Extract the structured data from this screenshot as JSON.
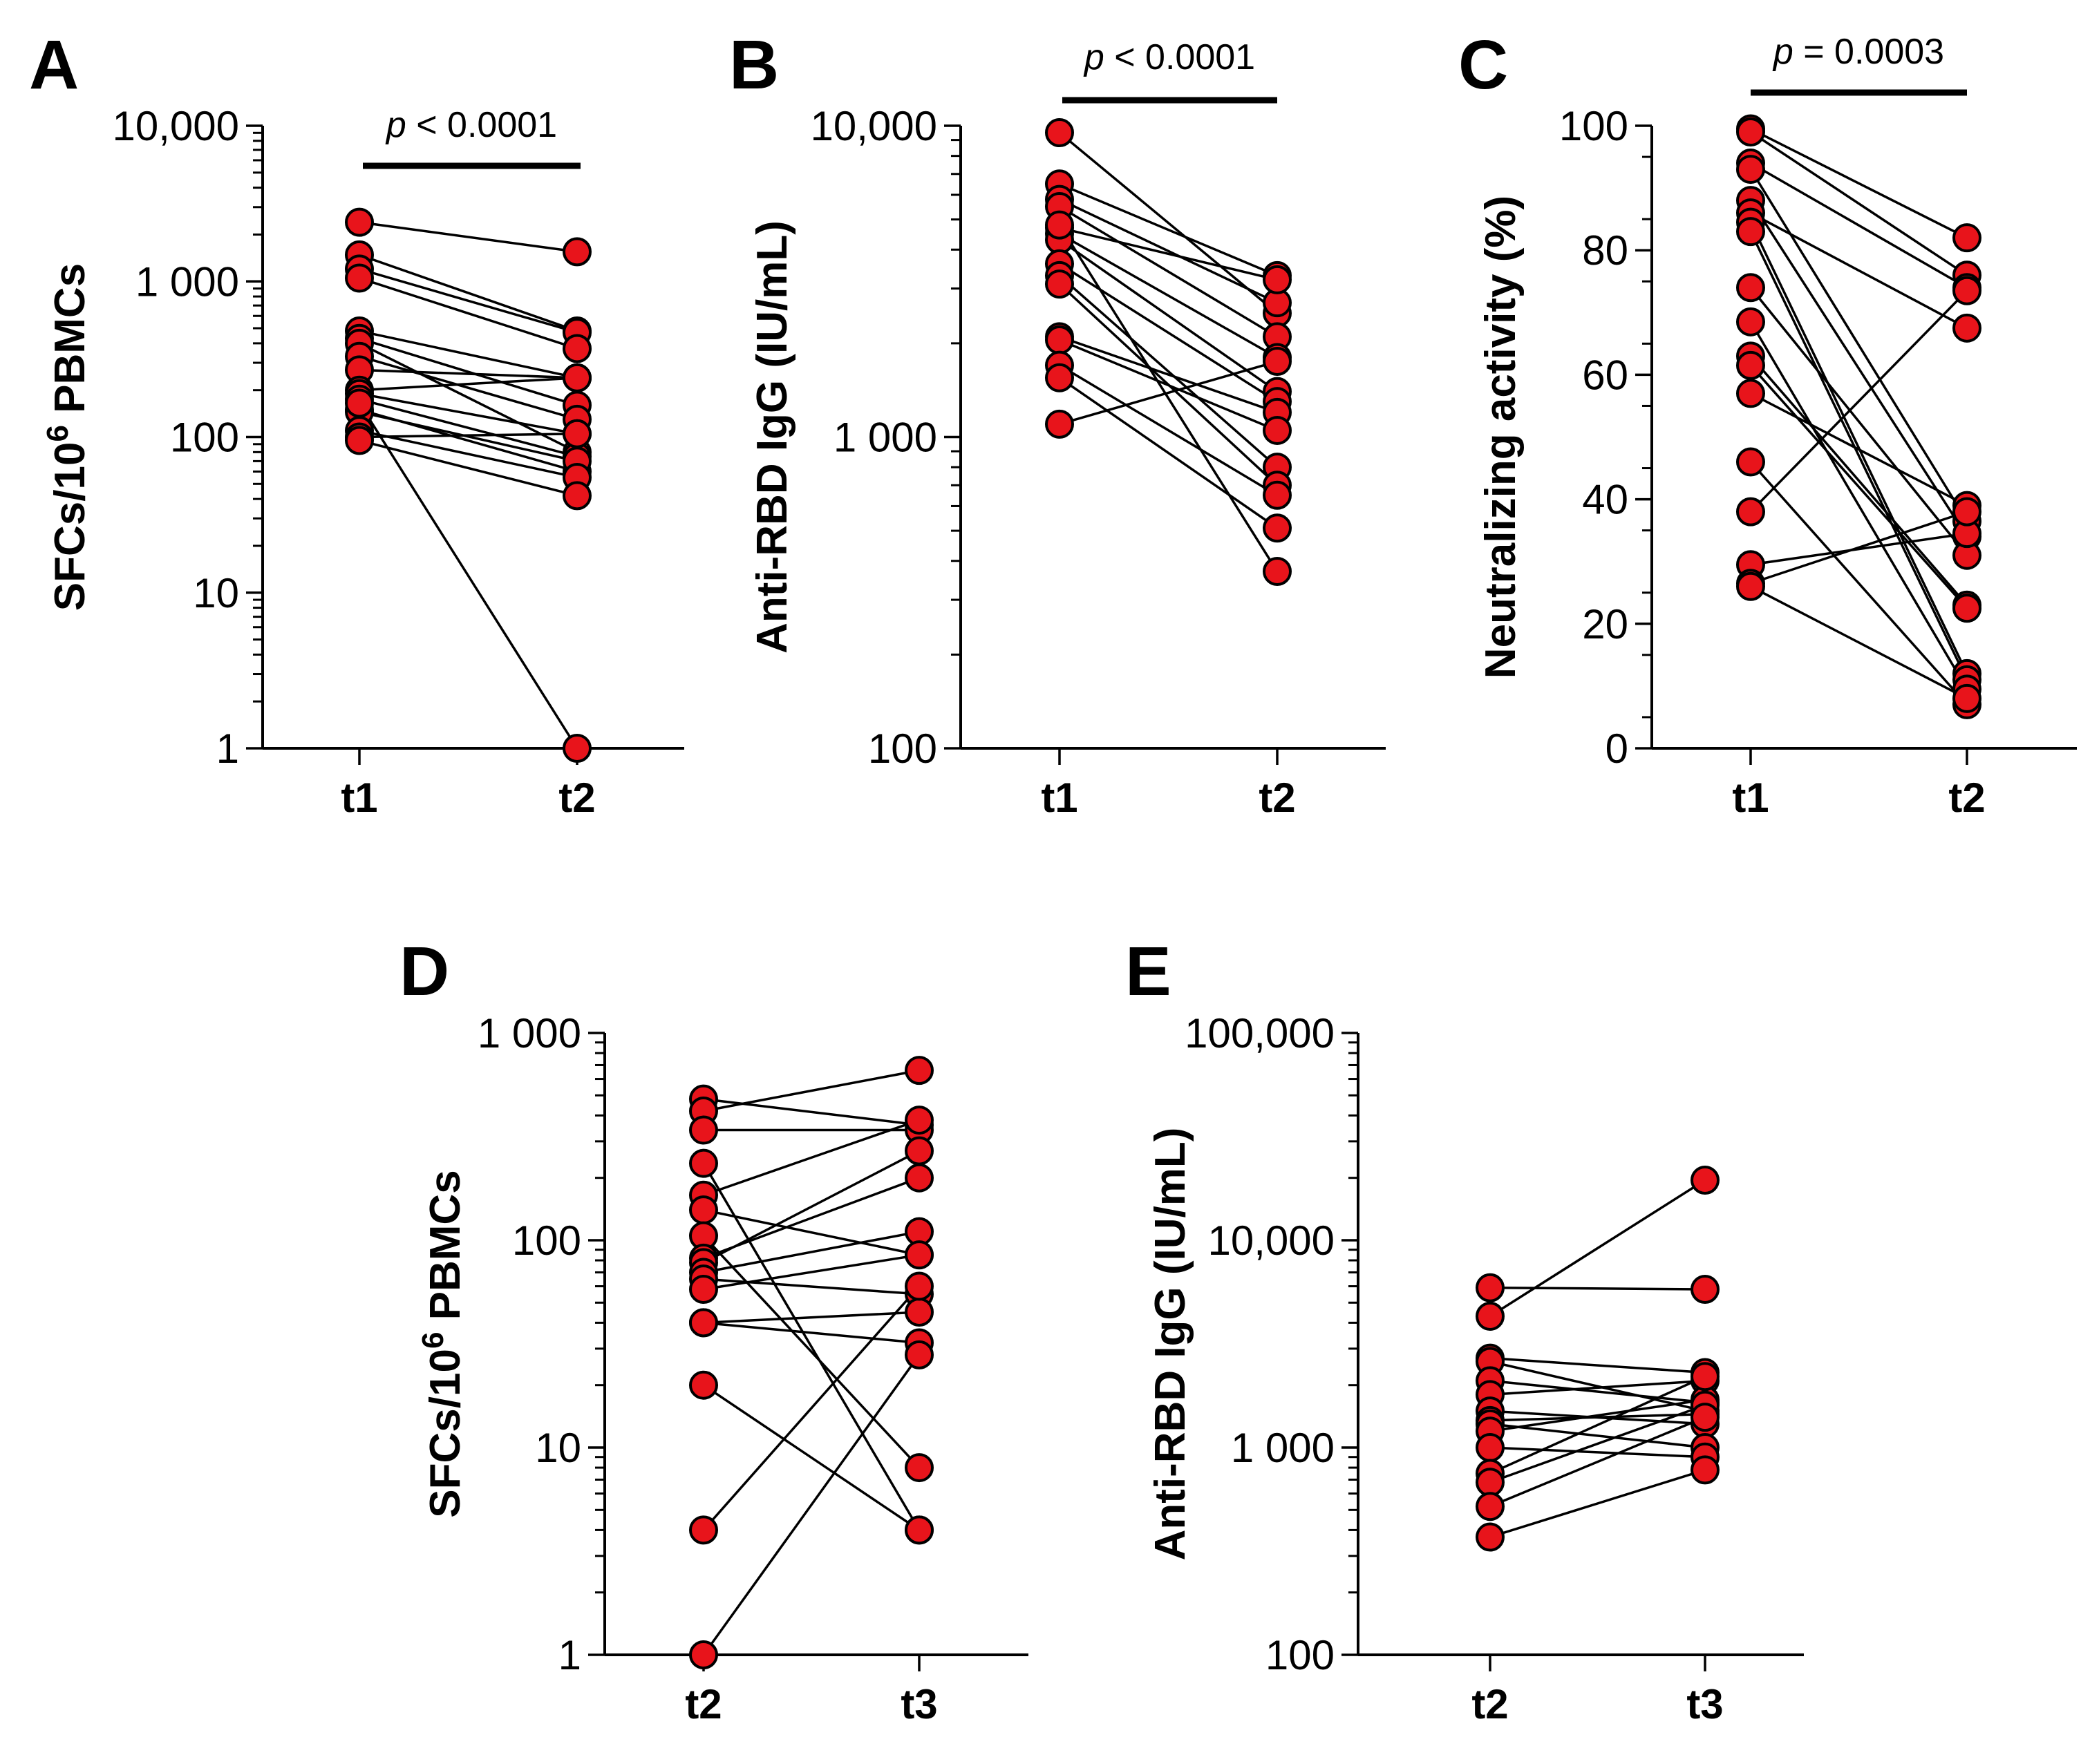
{
  "figure": {
    "point_color": "#e8141b",
    "line_color": "#000000"
  },
  "chart_data": [
    {
      "id": "A",
      "panel_letter": "A",
      "type": "scatter",
      "scale": "log",
      "ylim": [
        1,
        10000
      ],
      "yticks": [
        1,
        10,
        100,
        1000,
        10000
      ],
      "ytick_labels": [
        "1",
        "10",
        "100",
        "1 000",
        "10,000"
      ],
      "ylabel_main": "SFCs/10",
      "ylabel_sup": "6",
      "ylabel_tail": " PBMCs",
      "categories": [
        "t1",
        "t2"
      ],
      "pvalue": {
        "p": "p",
        "text": " < 0.0001"
      },
      "pairs": [
        [
          2400,
          1550
        ],
        [
          1480,
          480
        ],
        [
          1200,
          470
        ],
        [
          1050,
          370
        ],
        [
          480,
          240
        ],
        [
          430,
          160
        ],
        [
          400,
          80
        ],
        [
          330,
          130
        ],
        [
          270,
          240
        ],
        [
          200,
          240
        ],
        [
          190,
          105
        ],
        [
          175,
          75
        ],
        [
          150,
          60
        ],
        [
          145,
          70
        ],
        [
          110,
          55
        ],
        [
          100,
          105
        ],
        [
          95,
          42
        ],
        [
          165,
          1
        ]
      ]
    },
    {
      "id": "B",
      "panel_letter": "B",
      "type": "scatter",
      "scale": "log",
      "ylim": [
        100,
        10000
      ],
      "yticks": [
        100,
        1000,
        10000
      ],
      "ytick_labels": [
        "100",
        "1 000",
        "10,000"
      ],
      "ylabel_main": "Anti-RBD IgG (IU/mL)",
      "categories": [
        "t1",
        "t2"
      ],
      "pvalue": {
        "p": "p",
        "text": " < 0.0001"
      },
      "pairs": [
        [
          9500,
          2500
        ],
        [
          6500,
          3300
        ],
        [
          5800,
          2700
        ],
        [
          5500,
          2100
        ],
        [
          4700,
          3200
        ],
        [
          4500,
          1800
        ],
        [
          4300,
          1400
        ],
        [
          3600,
          1300
        ],
        [
          3300,
          800
        ],
        [
          3100,
          700
        ],
        [
          2100,
          1200
        ],
        [
          2050,
          1050
        ],
        [
          1700,
          650
        ],
        [
          1550,
          510
        ],
        [
          1100,
          1750
        ],
        [
          4800,
          370
        ]
      ]
    },
    {
      "id": "C",
      "panel_letter": "C",
      "type": "scatter",
      "scale": "linear",
      "ylim": [
        0,
        100
      ],
      "yticks": [
        0,
        20,
        40,
        60,
        80,
        100
      ],
      "ytick_labels": [
        "0",
        "20",
        "40",
        "60",
        "80",
        "100"
      ],
      "ylabel_main": "Neutralizing activity (%)",
      "categories": [
        "t1",
        "t2"
      ],
      "pvalue": {
        "p": "p",
        "text": " = 0.0003"
      },
      "pairs": [
        [
          99.5,
          82
        ],
        [
          99,
          76
        ],
        [
          94,
          74
        ],
        [
          93,
          36.5
        ],
        [
          88,
          34
        ],
        [
          86,
          67.5
        ],
        [
          84.5,
          12
        ],
        [
          83,
          11
        ],
        [
          74,
          31
        ],
        [
          68.5,
          9.5
        ],
        [
          63,
          23
        ],
        [
          61.5,
          22.5
        ],
        [
          57,
          39
        ],
        [
          46,
          7
        ],
        [
          38,
          73.5
        ],
        [
          29.5,
          34.5
        ],
        [
          26.5,
          38
        ],
        [
          26,
          8
        ]
      ]
    },
    {
      "id": "D",
      "panel_letter": "D",
      "type": "scatter",
      "scale": "log",
      "ylim": [
        1,
        1000
      ],
      "yticks": [
        1,
        10,
        100,
        1000
      ],
      "ytick_labels": [
        "1",
        "10",
        "100",
        "1 000"
      ],
      "ylabel_main": "SFCs/10",
      "ylabel_sup": "6",
      "ylabel_tail": " PBMCs",
      "categories": [
        "t2",
        "t3"
      ],
      "pairs": [
        [
          480,
          360
        ],
        [
          420,
          660
        ],
        [
          340,
          340
        ],
        [
          235,
          4
        ],
        [
          165,
          380
        ],
        [
          140,
          85
        ],
        [
          105,
          8
        ],
        [
          82,
          200
        ],
        [
          78,
          270
        ],
        [
          70,
          110
        ],
        [
          65,
          55
        ],
        [
          58,
          85
        ],
        [
          40,
          45
        ],
        [
          40,
          32
        ],
        [
          20,
          4
        ],
        [
          4,
          60
        ],
        [
          1,
          28
        ]
      ]
    },
    {
      "id": "E",
      "panel_letter": "E",
      "type": "scatter",
      "scale": "log",
      "ylim": [
        100,
        100000
      ],
      "yticks": [
        100,
        1000,
        10000,
        100000
      ],
      "ytick_labels": [
        "100",
        "1 000",
        "10,000",
        "100,000"
      ],
      "ylabel_main": "Anti-RBD IgG (IU/mL)",
      "categories": [
        "t2",
        "t3"
      ],
      "pairs": [
        [
          5900,
          5800
        ],
        [
          4300,
          19500
        ],
        [
          2700,
          2300
        ],
        [
          2600,
          1500
        ],
        [
          2100,
          1650
        ],
        [
          1800,
          2100
        ],
        [
          1500,
          1300
        ],
        [
          1350,
          1450
        ],
        [
          1300,
          1000
        ],
        [
          1200,
          1700
        ],
        [
          1000,
          900
        ],
        [
          750,
          2200
        ],
        [
          680,
          1600
        ],
        [
          520,
          1400
        ],
        [
          370,
          780
        ]
      ]
    }
  ]
}
